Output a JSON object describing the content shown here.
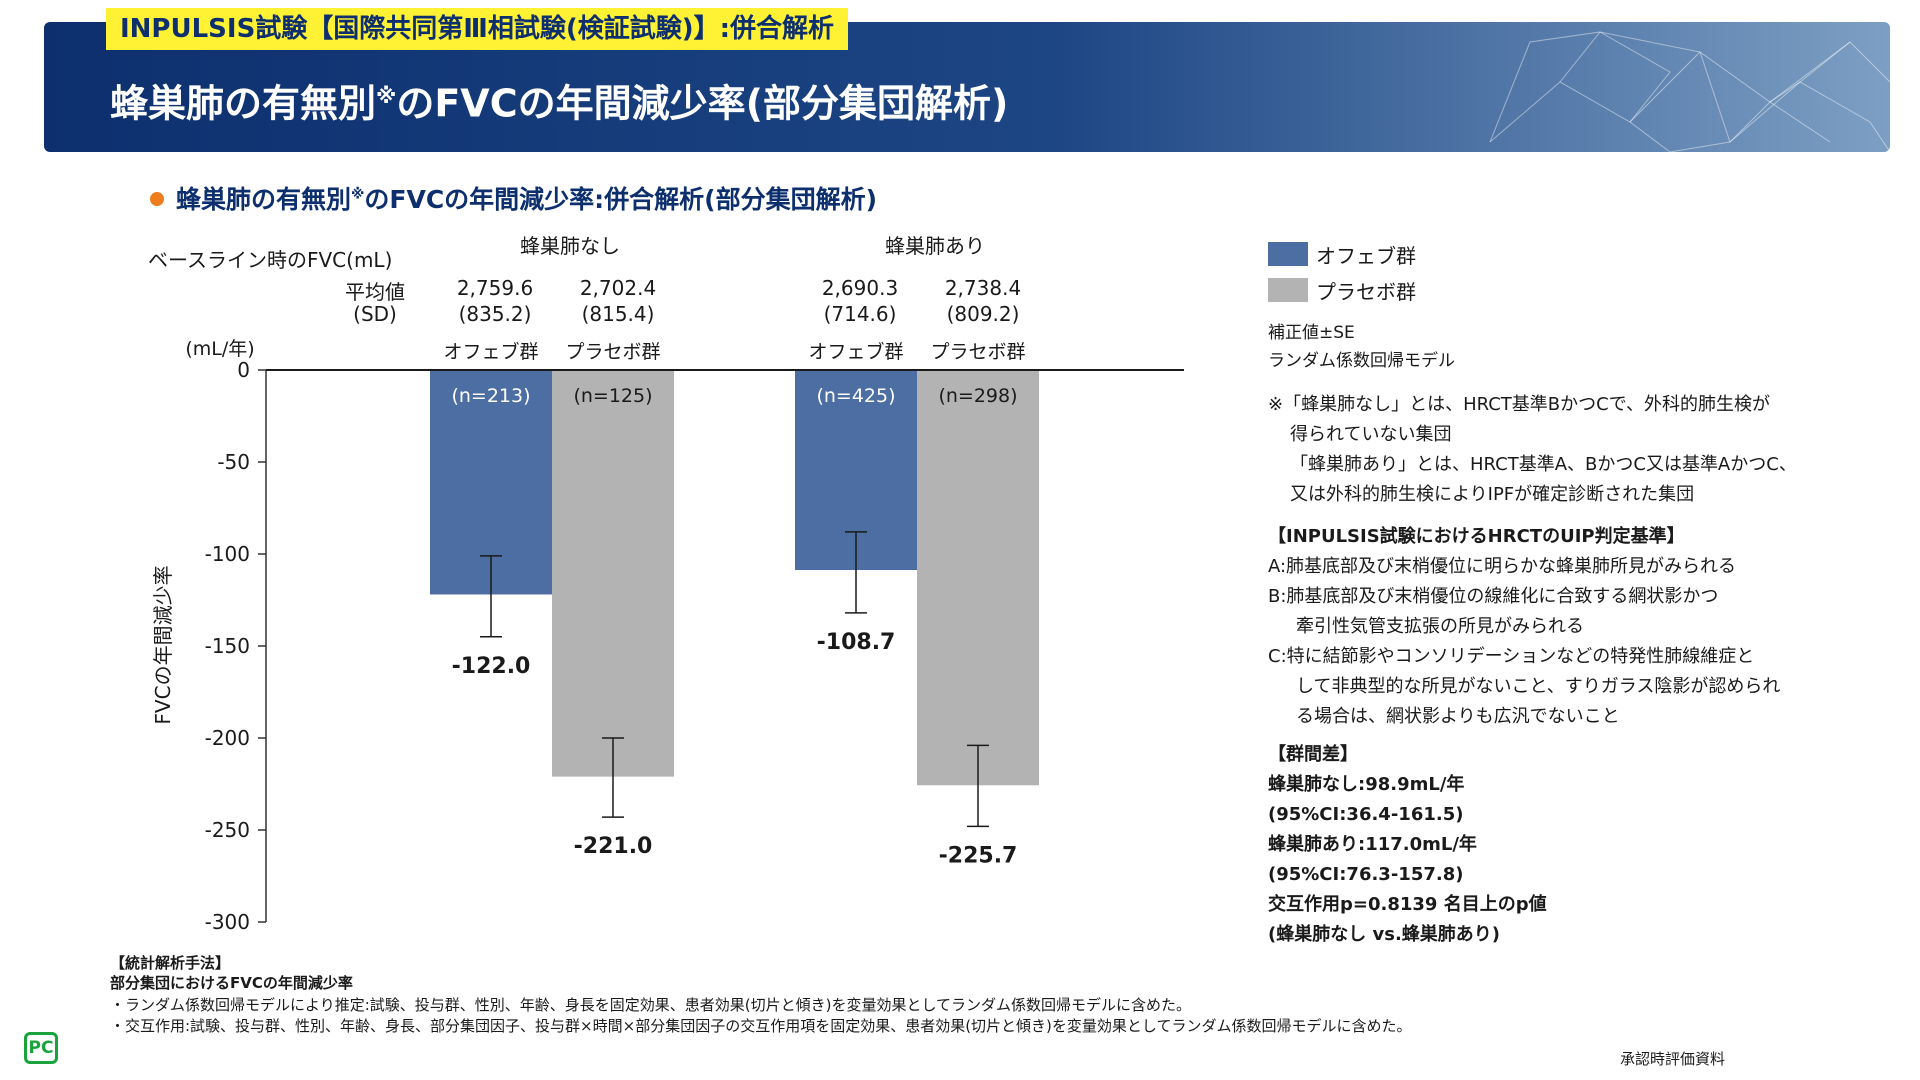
{
  "header": {
    "tag": "INPULSIS試験【国際共同第Ⅲ相試験(検証試験)】:併合解析",
    "title": "蜂巣肺の有無別",
    "title_mark": "※",
    "title_rest": "のFVCの年間減少率(部分集団解析)"
  },
  "section": {
    "title": "蜂巣肺の有無別",
    "title_mark": "※",
    "title_rest": "のFVCの年間減少率:併合解析(部分集団解析)"
  },
  "baseline": {
    "label": "ベースライン時のFVC(mL)",
    "mean_label": "平均値",
    "sd_label": "(SD)",
    "groups": [
      {
        "name": "蜂巣肺なし",
        "values": [
          {
            "mean": "2,759.6",
            "sd": "(835.2)"
          },
          {
            "mean": "2,702.4",
            "sd": "(815.4)"
          }
        ]
      },
      {
        "name": "蜂巣肺あり",
        "values": [
          {
            "mean": "2,690.3",
            "sd": "(714.6)"
          },
          {
            "mean": "2,738.4",
            "sd": "(809.2)"
          }
        ]
      }
    ]
  },
  "chart_data": {
    "type": "bar",
    "title": "蜂巣肺の有無別のFVCの年間減少率:併合解析(部分集団解析)",
    "ylabel": "FVCの年間減少率",
    "yunit": "(mL/年)",
    "ylim": [
      -300,
      0
    ],
    "yticks": [
      "0",
      "-50",
      "-100",
      "-150",
      "-200",
      "-250",
      "-300"
    ],
    "ytick_values": [
      0,
      -50,
      -100,
      -150,
      -200,
      -250,
      -300
    ],
    "categories": [
      "蜂巣肺なし",
      "蜂巣肺あり"
    ],
    "series": [
      {
        "name": "オフェブ群",
        "color": "#4d6ea3",
        "values": [
          -122.0,
          -108.7
        ],
        "err_low": [
          -145,
          -132
        ],
        "err_high": [
          -101,
          -88
        ],
        "n": [
          "(n=213)",
          "(n=425)"
        ],
        "labels": [
          "-122.0",
          "-108.7"
        ]
      },
      {
        "name": "プラセボ群",
        "color": "#b3b3b3",
        "values": [
          -221.0,
          -225.7
        ],
        "err_low": [
          -243,
          -248
        ],
        "err_high": [
          -200,
          -204
        ],
        "n": [
          "(n=125)",
          "(n=298)"
        ],
        "labels": [
          "-221.0",
          "-225.7"
        ]
      }
    ]
  },
  "legend": {
    "items": [
      {
        "label": "オフェブ群",
        "color": "#4d6ea3"
      },
      {
        "label": "プラセボ群",
        "color": "#b3b3b3"
      }
    ],
    "note1": "補正値±SE",
    "note2": "ランダム係数回帰モデル"
  },
  "notes": {
    "def_lines": [
      "※「蜂巣肺なし」とは、HRCT基準BかつCで、外科的肺生検が",
      "得られていない集団",
      "「蜂巣肺あり」とは、HRCT基準A、BかつC又は基準AかつC、",
      "又は外科的肺生検によりIPFが確定診断された集団"
    ],
    "criteria_title": "【INPULSIS試験におけるHRCTのUIP判定基準】",
    "criteria_lines": [
      "A:肺基底部及び末梢優位に明らかな蜂巣肺所見がみられる",
      "B:肺基底部及び末梢優位の線維化に合致する網状影かつ",
      "牽引性気管支拡張の所見がみられる",
      "C:特に結節影やコンソリデーションなどの特発性肺線維症と",
      "して非典型的な所見がないこと、すりガラス陰影が認められ",
      "る場合は、網状影よりも広汎でないこと"
    ],
    "diff_title": "【群間差】",
    "diff_lines": [
      "蜂巣肺なし:98.9mL/年",
      "(95%CI:36.4-161.5)",
      "蜂巣肺あり:117.0mL/年",
      "(95%CI:76.3-157.8)",
      "交互作用p=0.8139 名目上のp値",
      "(蜂巣肺なし vs.蜂巣肺あり)"
    ]
  },
  "footer": {
    "lines": [
      "【統計解析手法】",
      "部分集団におけるFVCの年間減少率",
      "・ランダム係数回帰モデルにより推定:試験、投与群、性別、年齢、身長を固定効果、患者効果(切片と傾き)を変量効果としてランダム係数回帰モデルに含めた。",
      "・交互作用:試験、投与群、性別、年齢、身長、部分集団因子、投与群×時間×部分集団因子の交互作用項を固定効果、患者効果(切片と傾き)を変量効果としてランダム係数回帰モデルに含めた。"
    ],
    "source": "承認時評価資料",
    "logo": "PC"
  }
}
